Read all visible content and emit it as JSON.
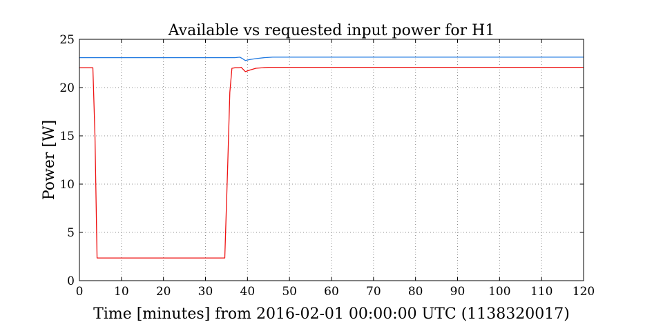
{
  "chart_data": {
    "type": "line",
    "title": "Available vs requested input power for H1",
    "xlabel": "Time [minutes] from 2016-02-01 00:00:00 UTC (1138320017)",
    "ylabel": "Power [W]",
    "xlim": [
      0,
      120
    ],
    "ylim": [
      0,
      25
    ],
    "xticks": [
      0,
      10,
      20,
      30,
      40,
      50,
      60,
      70,
      80,
      90,
      100,
      110,
      120
    ],
    "yticks": [
      0,
      5,
      10,
      15,
      20,
      25
    ],
    "grid": true,
    "series": [
      {
        "color": "#1f78e0",
        "x": [
          0,
          10,
          20,
          30,
          37,
          38.2,
          38.8,
          39.5,
          40.5,
          42,
          44,
          46,
          50,
          60,
          80,
          100,
          120
        ],
        "y": [
          23.1,
          23.1,
          23.1,
          23.1,
          23.1,
          23.15,
          23.0,
          22.8,
          22.9,
          23.0,
          23.1,
          23.15,
          23.15,
          23.15,
          23.15,
          23.15,
          23.15
        ]
      },
      {
        "color": "#ee1111",
        "x": [
          0,
          3.2,
          3.7,
          4.2,
          10,
          20,
          30,
          34.6,
          35.3,
          35.8,
          36.3,
          37,
          38,
          38.5,
          39.5,
          40.5,
          42,
          45,
          50,
          60,
          80,
          100,
          120
        ],
        "y": [
          22.05,
          22.05,
          15.0,
          2.35,
          2.35,
          2.35,
          2.35,
          2.35,
          12.0,
          19.5,
          22.0,
          22.05,
          22.05,
          22.1,
          21.65,
          21.8,
          22.0,
          22.1,
          22.1,
          22.1,
          22.1,
          22.1,
          22.1
        ]
      }
    ]
  }
}
